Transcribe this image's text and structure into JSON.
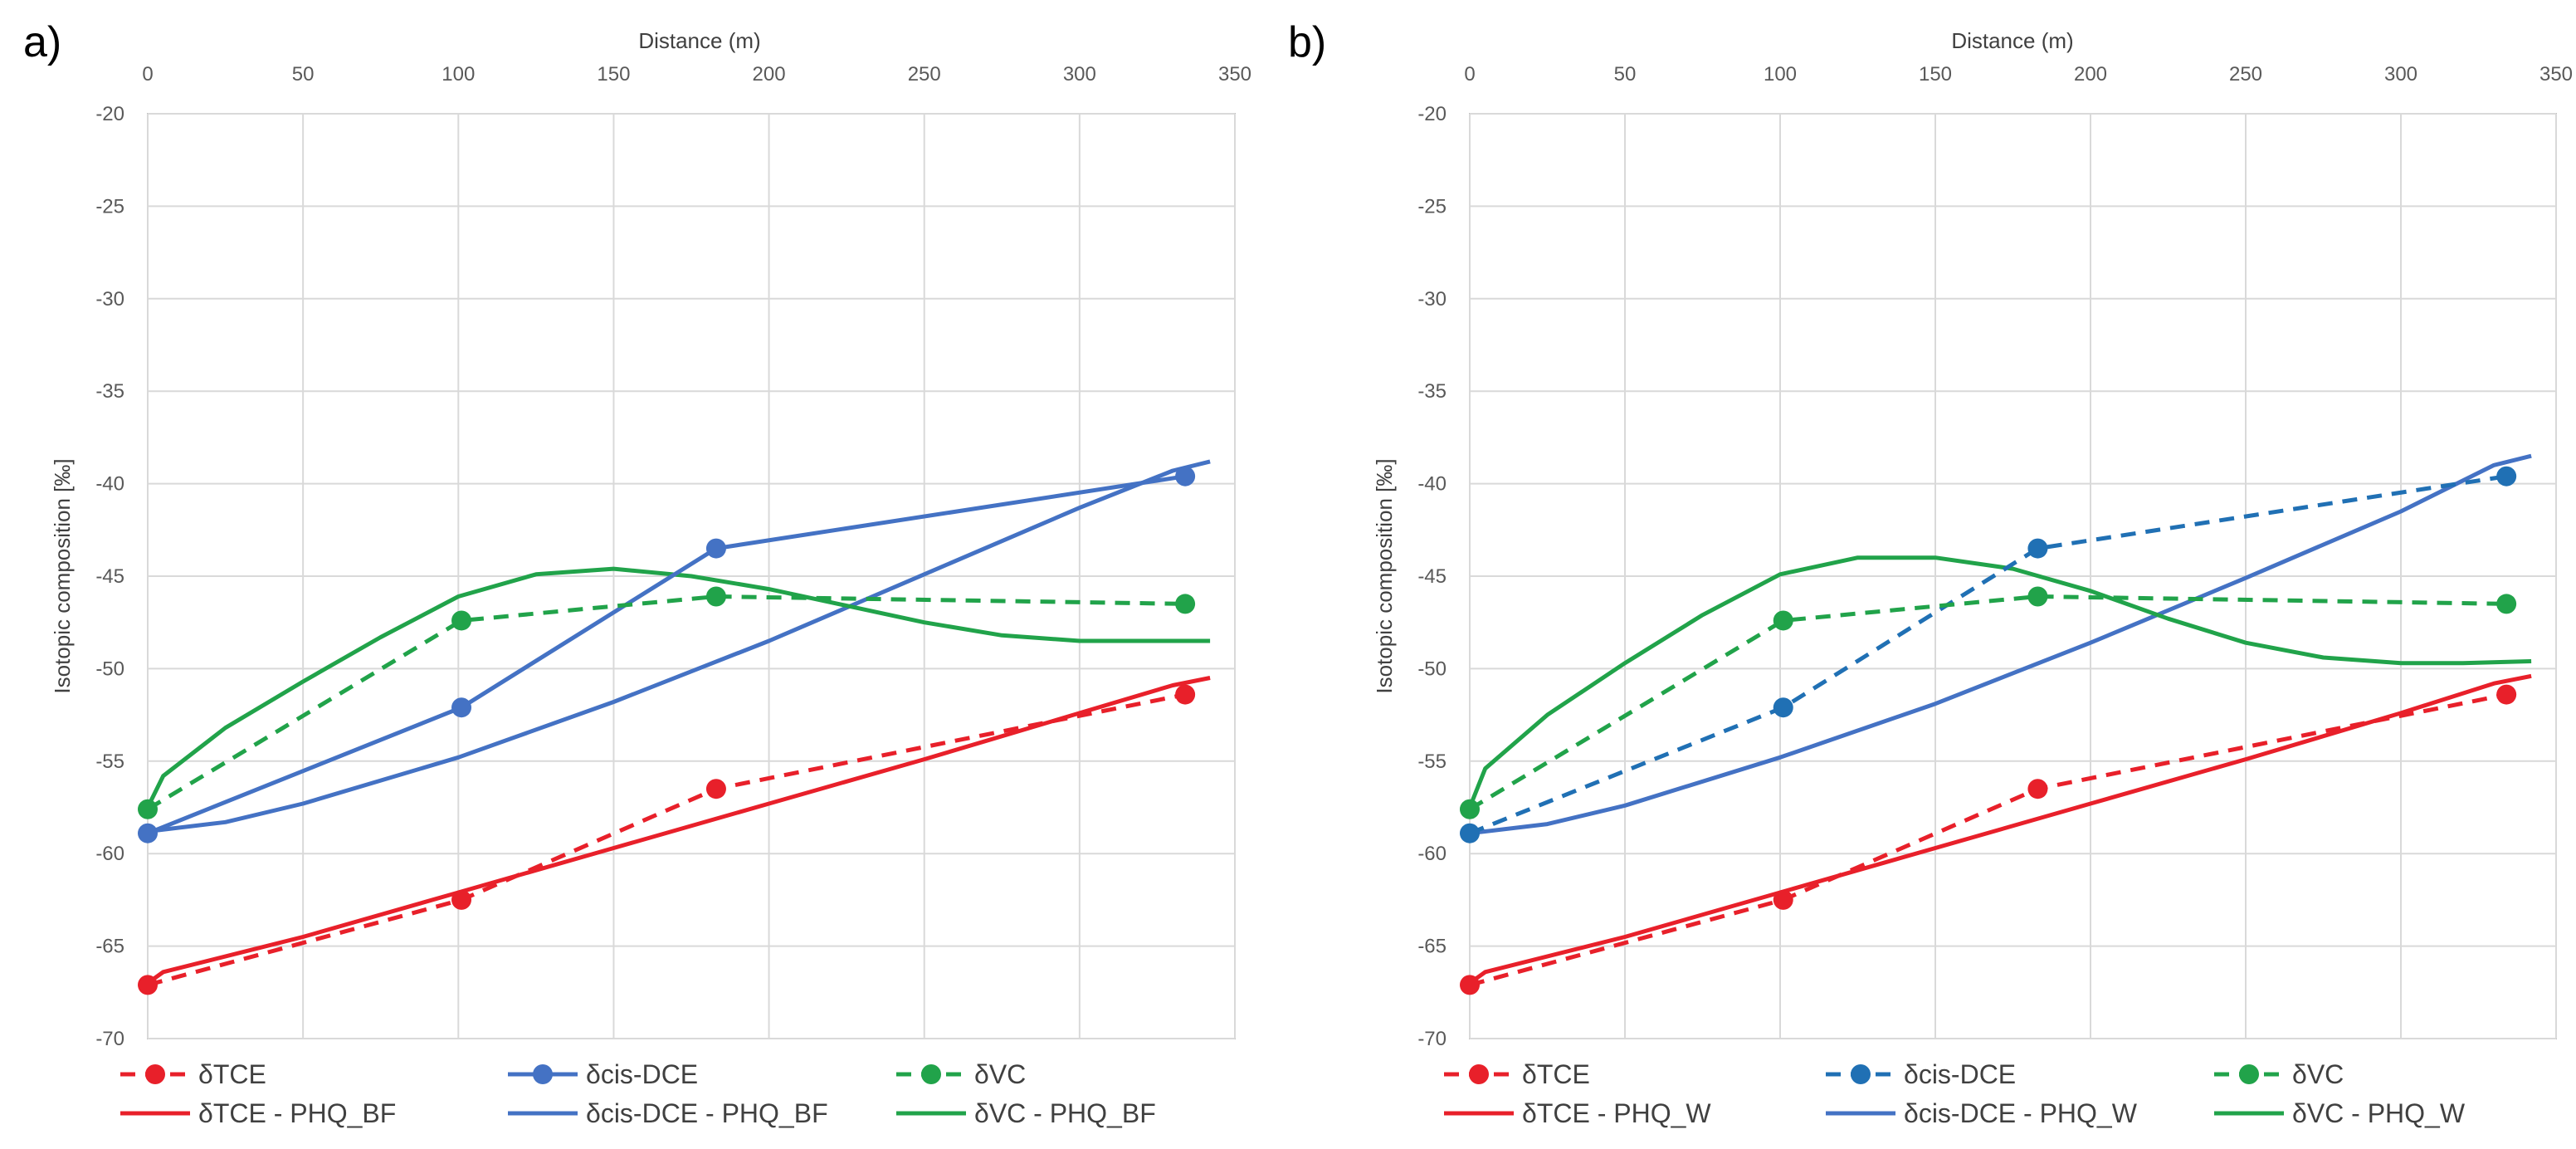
{
  "chart_data": [
    {
      "panel_label": "a)",
      "type": "line",
      "xlabel": "Distance (m)",
      "ylabel": "Isotopic composition [‰]",
      "xlim": [
        0,
        350
      ],
      "ylim": [
        -70,
        -20
      ],
      "x_ticks": [
        0,
        50,
        100,
        150,
        200,
        250,
        300,
        350
      ],
      "y_ticks": [
        -20,
        -25,
        -30,
        -35,
        -40,
        -45,
        -50,
        -55,
        -60,
        -65,
        -70
      ],
      "grid": true,
      "legend_position": "bottom",
      "series": [
        {
          "name": "δTCE",
          "color": "#e8202a",
          "style": "dashed",
          "marker": true,
          "x": [
            0,
            101,
            183,
            334
          ],
          "y": [
            -67.1,
            -62.5,
            -56.5,
            -51.4
          ]
        },
        {
          "name": "δcis-DCE",
          "color": "#4472c4",
          "style": "solid",
          "marker": true,
          "x": [
            0,
            101,
            183,
            334
          ],
          "y": [
            -58.9,
            -52.1,
            -43.5,
            -39.6
          ]
        },
        {
          "name": "δVC",
          "color": "#21a34a",
          "style": "dashed",
          "marker": true,
          "x": [
            0,
            101,
            183,
            334
          ],
          "y": [
            -57.6,
            -47.4,
            -46.1,
            -46.5
          ]
        },
        {
          "name": "δTCE - PHQ_BF",
          "color": "#e8202a",
          "style": "solid",
          "marker": false,
          "x": [
            0,
            5,
            50,
            100,
            150,
            200,
            250,
            300,
            330,
            342
          ],
          "y": [
            -67,
            -66.4,
            -64.5,
            -62.1,
            -59.7,
            -57.3,
            -54.9,
            -52.4,
            -50.9,
            -50.5
          ]
        },
        {
          "name": "δcis-DCE - PHQ_BF",
          "color": "#4472c4",
          "style": "solid",
          "marker": false,
          "x": [
            0,
            25,
            50,
            100,
            150,
            200,
            250,
            300,
            330,
            342
          ],
          "y": [
            -58.8,
            -58.3,
            -57.3,
            -54.8,
            -51.8,
            -48.5,
            -44.9,
            -41.3,
            -39.3,
            -38.8
          ]
        },
        {
          "name": "δVC - PHQ_BF",
          "color": "#21a34a",
          "style": "solid",
          "marker": false,
          "x": [
            0,
            5,
            25,
            50,
            75,
            100,
            125,
            150,
            175,
            200,
            225,
            250,
            275,
            300,
            320,
            342
          ],
          "y": [
            -57.5,
            -55.8,
            -53.2,
            -50.7,
            -48.3,
            -46.1,
            -44.9,
            -44.6,
            -45,
            -45.7,
            -46.6,
            -47.5,
            -48.2,
            -48.5,
            -48.5,
            -48.5
          ]
        }
      ]
    },
    {
      "panel_label": "b)",
      "type": "line",
      "xlabel": "Distance (m)",
      "ylabel": "Isotopic composition [‰]",
      "xlim": [
        0,
        350
      ],
      "ylim": [
        -70,
        -20
      ],
      "x_ticks": [
        0,
        50,
        100,
        150,
        200,
        250,
        300,
        350
      ],
      "y_ticks": [
        -20,
        -25,
        -30,
        -35,
        -40,
        -45,
        -50,
        -55,
        -60,
        -65,
        -70
      ],
      "grid": true,
      "legend_position": "bottom",
      "series": [
        {
          "name": "δTCE",
          "color": "#e8202a",
          "style": "dashed",
          "marker": true,
          "x": [
            0,
            101,
            183,
            334
          ],
          "y": [
            -67.1,
            -62.5,
            -56.5,
            -51.4
          ]
        },
        {
          "name": "δcis-DCE",
          "color": "#2070b4",
          "style": "dashed",
          "marker": true,
          "x": [
            0,
            101,
            183,
            334
          ],
          "y": [
            -58.9,
            -52.1,
            -43.5,
            -39.6
          ]
        },
        {
          "name": "δVC",
          "color": "#21a34a",
          "style": "dashed",
          "marker": true,
          "x": [
            0,
            101,
            183,
            334
          ],
          "y": [
            -57.6,
            -47.4,
            -46.1,
            -46.5
          ]
        },
        {
          "name": "δTCE - PHQ_W",
          "color": "#e8202a",
          "style": "solid",
          "marker": false,
          "x": [
            0,
            5,
            50,
            100,
            150,
            200,
            250,
            300,
            330,
            342
          ],
          "y": [
            -67,
            -66.4,
            -64.5,
            -62.1,
            -59.7,
            -57.3,
            -54.9,
            -52.4,
            -50.8,
            -50.4
          ]
        },
        {
          "name": "δcis-DCE - PHQ_W",
          "color": "#4472c4",
          "style": "solid",
          "marker": false,
          "x": [
            0,
            25,
            50,
            100,
            150,
            200,
            250,
            300,
            330,
            342
          ],
          "y": [
            -58.9,
            -58.4,
            -57.4,
            -54.8,
            -51.9,
            -48.6,
            -45.1,
            -41.5,
            -39,
            -38.5
          ]
        },
        {
          "name": "δVC - PHQ_W",
          "color": "#21a34a",
          "style": "solid",
          "marker": false,
          "x": [
            0,
            5,
            25,
            50,
            75,
            100,
            125,
            150,
            175,
            200,
            225,
            250,
            275,
            300,
            320,
            342
          ],
          "y": [
            -57.5,
            -55.4,
            -52.5,
            -49.7,
            -47.1,
            -44.9,
            -44,
            -44,
            -44.6,
            -45.8,
            -47.3,
            -48.6,
            -49.4,
            -49.7,
            -49.7,
            -49.6
          ]
        }
      ]
    }
  ]
}
